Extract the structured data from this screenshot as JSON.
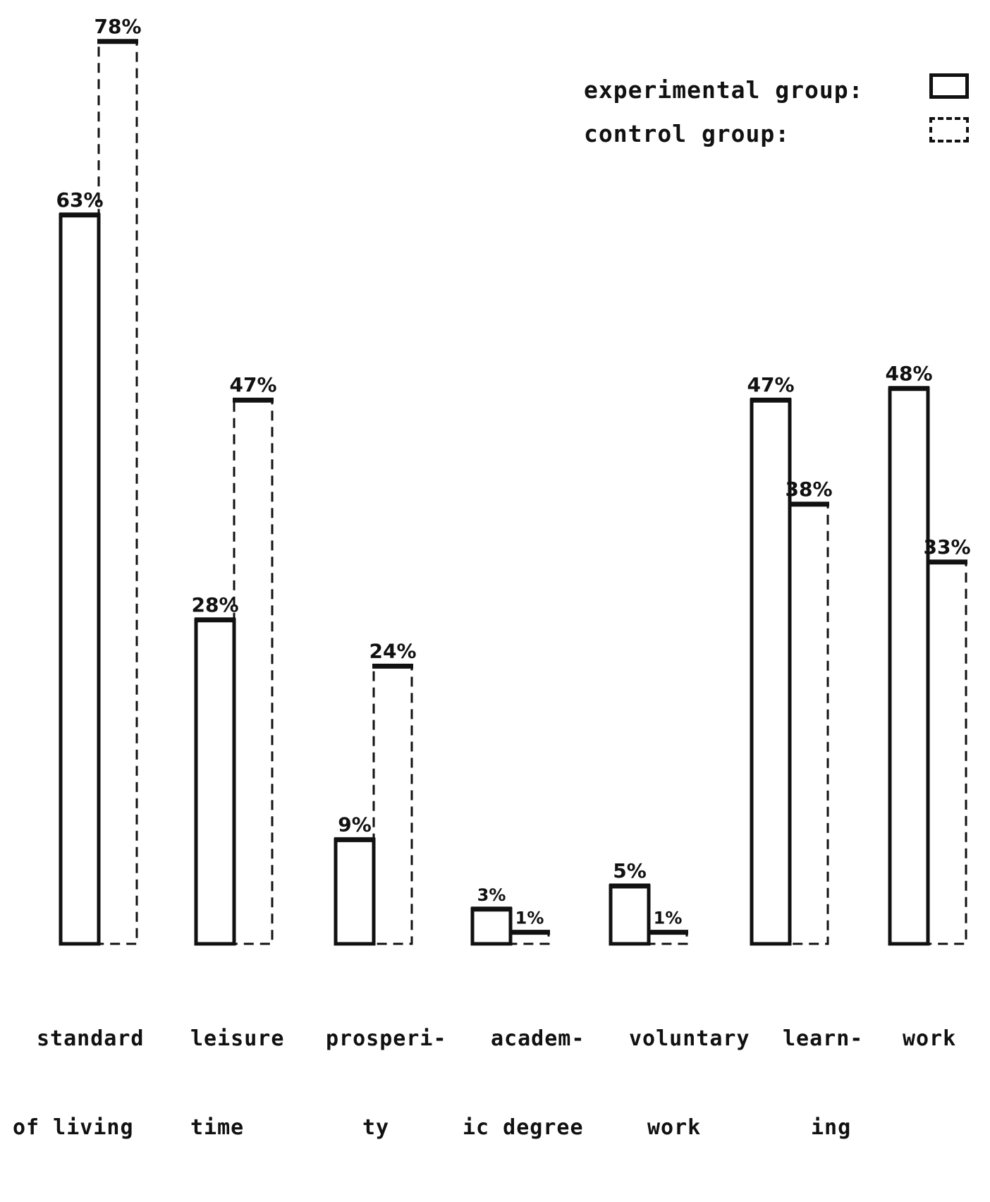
{
  "chart_data": {
    "type": "bar",
    "categories": [
      "standard of living",
      "leisure time",
      "prosperity",
      "academic degree",
      "voluntary work",
      "learning",
      "work"
    ],
    "category_label_lines": [
      [
        "standard",
        "of living"
      ],
      [
        "leisure",
        "time"
      ],
      [
        "prosperi-",
        "ty"
      ],
      [
        "academ-",
        "ic degree"
      ],
      [
        "voluntary",
        "work"
      ],
      [
        "learn-",
        "ing"
      ],
      [
        "work",
        ""
      ]
    ],
    "series": [
      {
        "name": "experimental group:",
        "style": "solid",
        "values": [
          63,
          28,
          9,
          3,
          5,
          47,
          48
        ],
        "labels": [
          "63%",
          "28%",
          "9%",
          "3%",
          "5%",
          "47%",
          "48%"
        ]
      },
      {
        "name": "control group:",
        "style": "dashed",
        "values": [
          78,
          47,
          24,
          1,
          1,
          38,
          33
        ],
        "labels": [
          "78%",
          "47%",
          "24%",
          "1%",
          "1%",
          "38%",
          "33%"
        ]
      }
    ],
    "ylim": [
      0,
      80
    ],
    "title": "",
    "xlabel": "",
    "ylabel": "",
    "grid": false,
    "legend_position": "top-right",
    "colors": {
      "ink": "#111111",
      "background": "#ffffff"
    }
  }
}
